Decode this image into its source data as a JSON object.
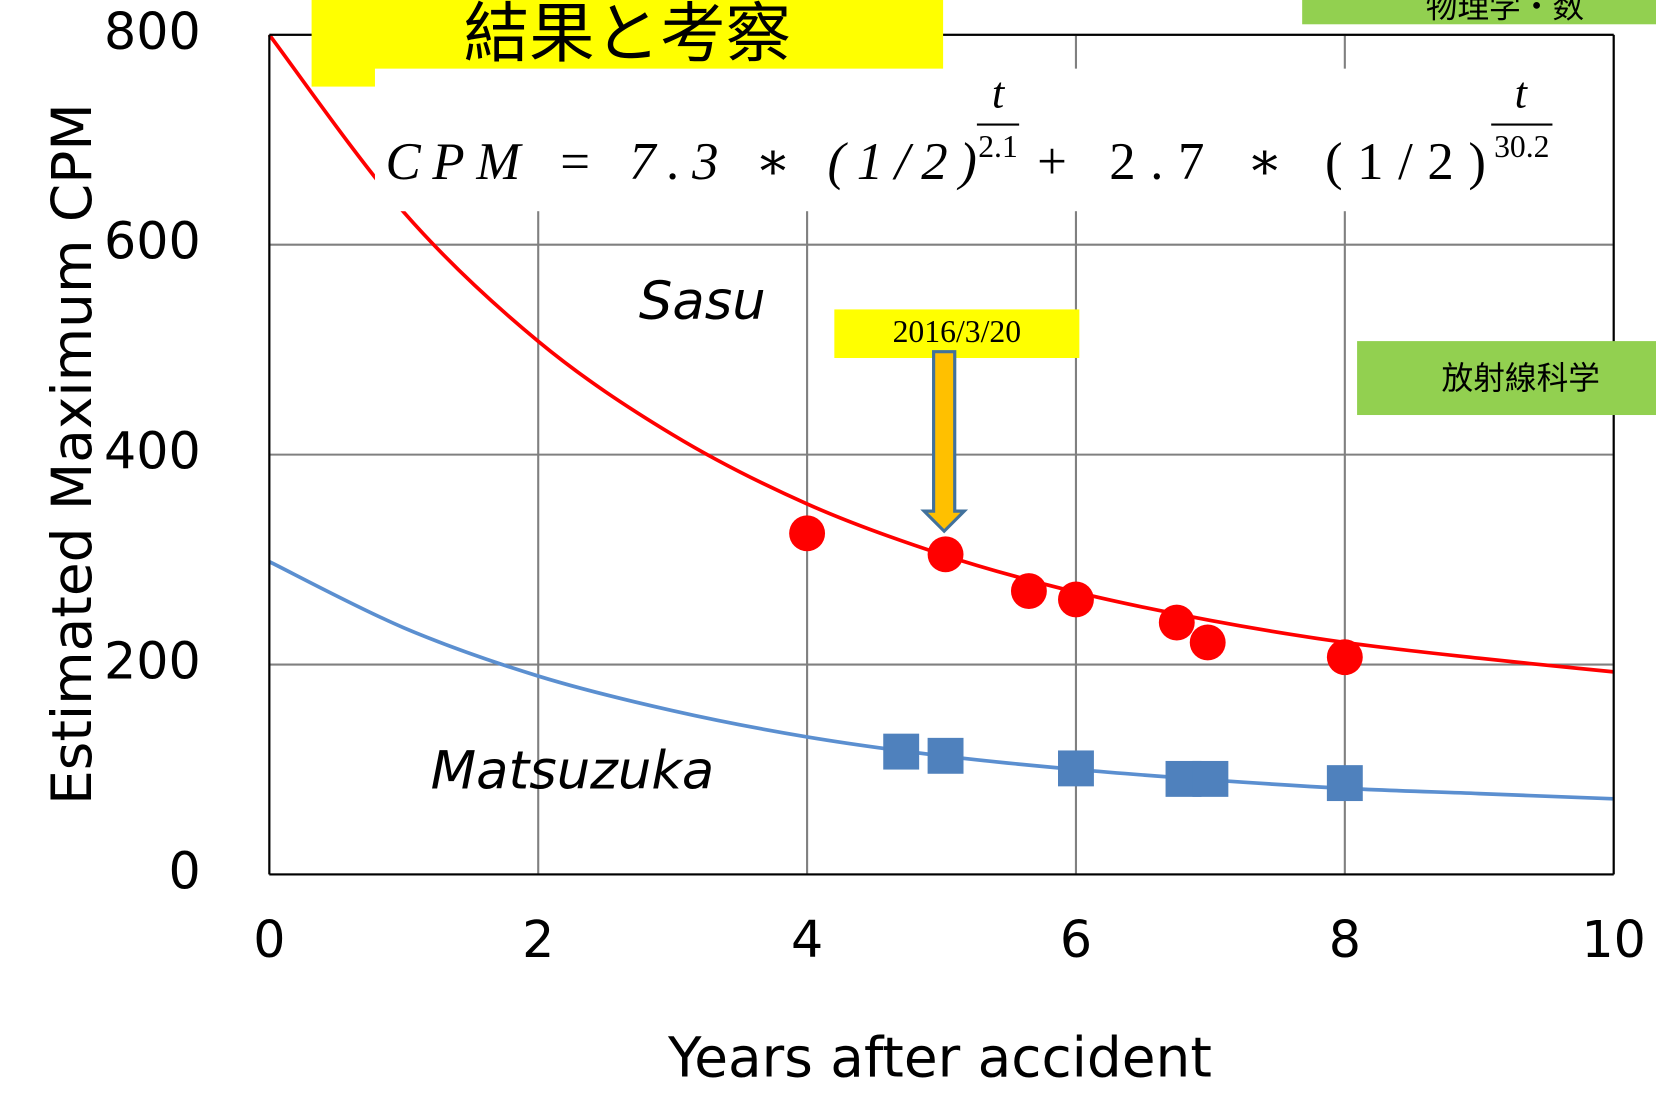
{
  "chart_data": {
    "type": "scatter",
    "title": "結果と考察",
    "xlabel": "Years after accident",
    "ylabel": "Estimated Maximum CPM",
    "xlim": [
      0,
      10
    ],
    "ylim": [
      0,
      800
    ],
    "xticks": [
      0,
      2,
      4,
      6,
      8,
      10
    ],
    "yticks": [
      0,
      200,
      400,
      600,
      800
    ],
    "grid": true,
    "series": [
      {
        "name": "Sasu",
        "color": "#ff0000",
        "marker": "circle",
        "x": [
          4.0,
          5.03,
          5.65,
          6.0,
          6.75,
          6.98,
          8.0
        ],
        "values": [
          325,
          305,
          270,
          262,
          240,
          221,
          207
        ]
      },
      {
        "name": "Matsuzuka",
        "color": "#4f81bd",
        "marker": "square",
        "x": [
          4.7,
          5.03,
          6.0,
          6.8,
          7.0,
          8.0
        ],
        "values": [
          117,
          113,
          101,
          91,
          91,
          87
        ]
      }
    ],
    "fits": [
      {
        "color": "#ff0000",
        "x": [
          0,
          1,
          2,
          3,
          4,
          5,
          6,
          7,
          8,
          9,
          10
        ],
        "values": [
          800,
          631,
          508,
          419,
          353,
          305,
          269,
          242,
          221,
          206,
          193
        ]
      },
      {
        "color": "#5b8fd0",
        "x": [
          0,
          1,
          2,
          3,
          4,
          5,
          6,
          7,
          8,
          9,
          10
        ],
        "values": [
          298,
          235,
          189,
          156,
          131,
          113,
          100,
          90,
          82,
          77,
          72
        ]
      }
    ],
    "formula": {
      "part1": "CPM = 7.3 ∗ (1/2)",
      "num1": "t",
      "den1": "2.1",
      "part2": "+ 2.7 ∗ (1/2)",
      "num2": "t",
      "den2": "30.2"
    },
    "date_annotation": "2016/3/20",
    "tags": [
      "物理学・数",
      "放射線科学"
    ]
  }
}
